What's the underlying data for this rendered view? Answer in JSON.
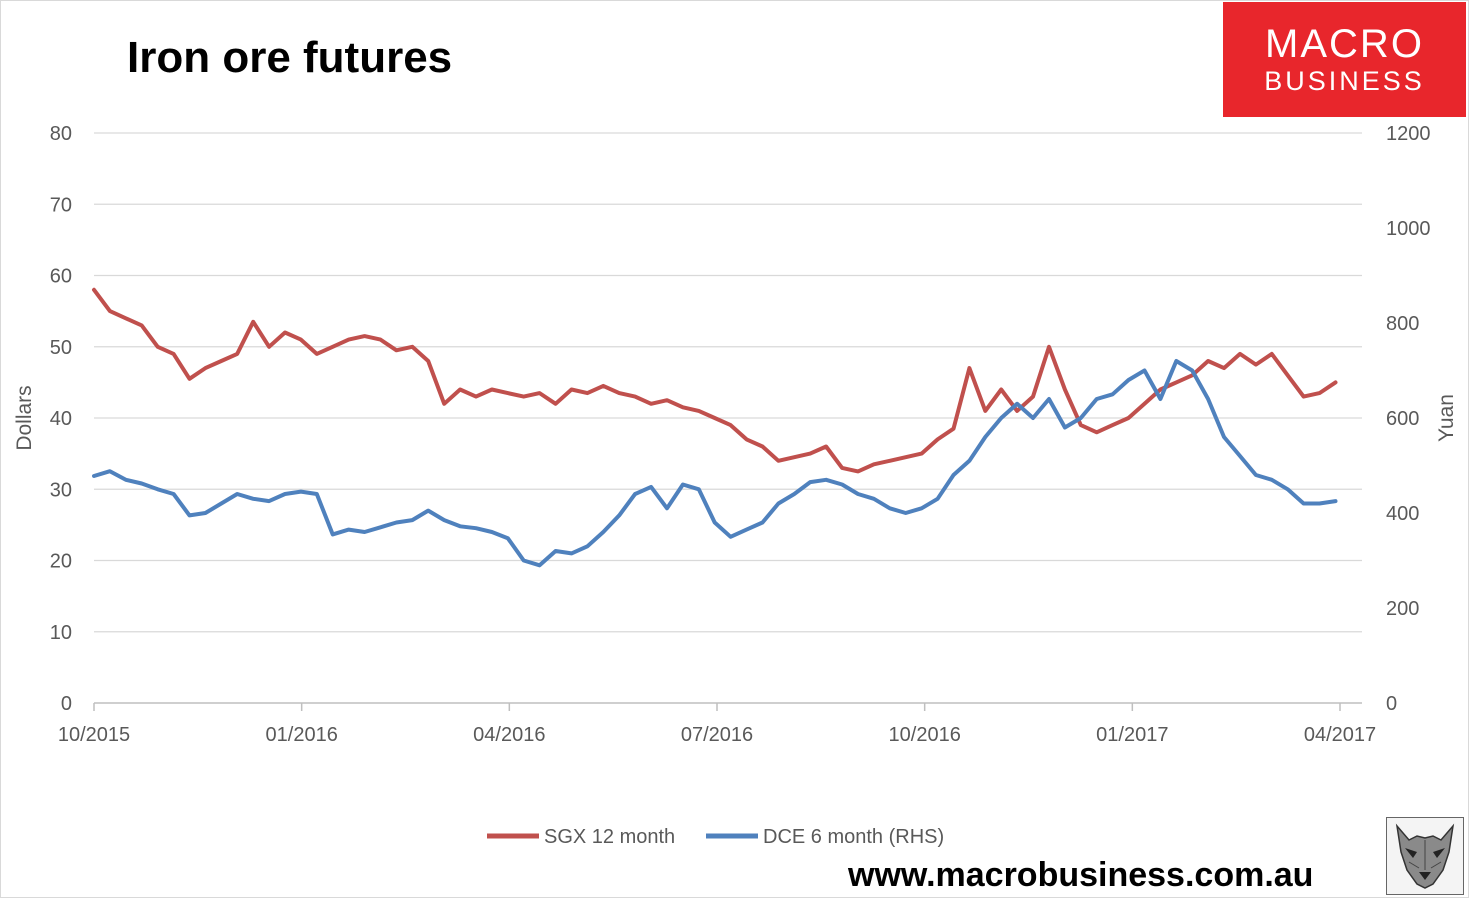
{
  "header": {
    "title": "Iron ore futures"
  },
  "logo": {
    "line1": "MACRO",
    "line2": "BUSINESS",
    "color": "#e8262c"
  },
  "footer": {
    "url": "www.macrobusiness.com.au"
  },
  "wolf_icon": "wolf-head-icon",
  "chart_data": {
    "type": "line",
    "title": "Iron ore futures",
    "ylabel": "Dollars",
    "y2label": "Yuan",
    "ylim": [
      0,
      80
    ],
    "y2lim": [
      0,
      1200
    ],
    "yticks": [
      0,
      10,
      20,
      30,
      40,
      50,
      60,
      70,
      80
    ],
    "y2ticks": [
      0,
      200,
      400,
      600,
      800,
      1000,
      1200
    ],
    "xticks": [
      "10/2015",
      "01/2016",
      "04/2016",
      "07/2016",
      "10/2016",
      "01/2017",
      "04/2017"
    ],
    "x_range": [
      "2015-10-01",
      "2017-04-01"
    ],
    "grid": true,
    "legend_position": "bottom",
    "series": [
      {
        "name": "SGX 12 month",
        "axis": "left",
        "color": "#c0504d",
        "points": [
          [
            "2015-10-01",
            58
          ],
          [
            "2015-10-08",
            55
          ],
          [
            "2015-10-15",
            54
          ],
          [
            "2015-10-22",
            53
          ],
          [
            "2015-10-29",
            50
          ],
          [
            "2015-11-05",
            49
          ],
          [
            "2015-11-12",
            45.5
          ],
          [
            "2015-11-19",
            47
          ],
          [
            "2015-11-26",
            48
          ],
          [
            "2015-12-03",
            49
          ],
          [
            "2015-12-10",
            53.5
          ],
          [
            "2015-12-17",
            50
          ],
          [
            "2015-12-24",
            52
          ],
          [
            "2015-12-31",
            51
          ],
          [
            "2016-01-07",
            49
          ],
          [
            "2016-01-14",
            50
          ],
          [
            "2016-01-21",
            51
          ],
          [
            "2016-01-28",
            51.5
          ],
          [
            "2016-02-04",
            51
          ],
          [
            "2016-02-11",
            49.5
          ],
          [
            "2016-02-18",
            50
          ],
          [
            "2016-02-25",
            48
          ],
          [
            "2016-03-03",
            42
          ],
          [
            "2016-03-10",
            44
          ],
          [
            "2016-03-17",
            43
          ],
          [
            "2016-03-24",
            44
          ],
          [
            "2016-03-31",
            43.5
          ],
          [
            "2016-04-07",
            43
          ],
          [
            "2016-04-14",
            43.5
          ],
          [
            "2016-04-21",
            42
          ],
          [
            "2016-04-28",
            44
          ],
          [
            "2016-05-05",
            43.5
          ],
          [
            "2016-05-12",
            44.5
          ],
          [
            "2016-05-19",
            43.5
          ],
          [
            "2016-05-26",
            43
          ],
          [
            "2016-06-02",
            42
          ],
          [
            "2016-06-09",
            42.5
          ],
          [
            "2016-06-16",
            41.5
          ],
          [
            "2016-06-23",
            41
          ],
          [
            "2016-06-30",
            40
          ],
          [
            "2016-07-07",
            39
          ],
          [
            "2016-07-14",
            37
          ],
          [
            "2016-07-21",
            36
          ],
          [
            "2016-07-28",
            34
          ],
          [
            "2016-08-04",
            34.5
          ],
          [
            "2016-08-11",
            35
          ],
          [
            "2016-08-18",
            36
          ],
          [
            "2016-08-25",
            33
          ],
          [
            "2016-09-01",
            32.5
          ],
          [
            "2016-09-08",
            33.5
          ],
          [
            "2016-09-15",
            34
          ],
          [
            "2016-09-22",
            34.5
          ],
          [
            "2016-09-29",
            35
          ],
          [
            "2016-10-06",
            37
          ],
          [
            "2016-10-13",
            38.5
          ],
          [
            "2016-10-20",
            47
          ],
          [
            "2016-10-27",
            41
          ],
          [
            "2016-11-03",
            44
          ],
          [
            "2016-11-10",
            41
          ],
          [
            "2016-11-17",
            43
          ],
          [
            "2016-11-24",
            50
          ],
          [
            "2016-12-01",
            44
          ],
          [
            "2016-12-08",
            39
          ],
          [
            "2016-12-15",
            38
          ],
          [
            "2016-12-22",
            39
          ],
          [
            "2016-12-29",
            40
          ],
          [
            "2017-01-05",
            42
          ],
          [
            "2017-01-12",
            44
          ],
          [
            "2017-01-19",
            45
          ],
          [
            "2017-01-26",
            46
          ],
          [
            "2017-02-02",
            48
          ],
          [
            "2017-02-09",
            47
          ],
          [
            "2017-02-16",
            49
          ],
          [
            "2017-02-23",
            47.5
          ],
          [
            "2017-03-02",
            49
          ],
          [
            "2017-03-09",
            46
          ],
          [
            "2017-03-16",
            43
          ],
          [
            "2017-03-23",
            43.5
          ],
          [
            "2017-03-30",
            45
          ]
        ]
      },
      {
        "name": "DCE 6 month (RHS)",
        "axis": "right",
        "color": "#4f81bd",
        "points": [
          [
            "2015-10-01",
            478
          ],
          [
            "2015-10-08",
            488
          ],
          [
            "2015-10-15",
            470
          ],
          [
            "2015-10-22",
            462
          ],
          [
            "2015-10-29",
            450
          ],
          [
            "2015-11-05",
            440
          ],
          [
            "2015-11-12",
            395
          ],
          [
            "2015-11-19",
            400
          ],
          [
            "2015-11-26",
            420
          ],
          [
            "2015-12-03",
            440
          ],
          [
            "2015-12-10",
            430
          ],
          [
            "2015-12-17",
            425
          ],
          [
            "2015-12-24",
            440
          ],
          [
            "2015-12-31",
            445
          ],
          [
            "2016-01-07",
            440
          ],
          [
            "2016-01-14",
            355
          ],
          [
            "2016-01-21",
            365
          ],
          [
            "2016-01-28",
            360
          ],
          [
            "2016-02-04",
            370
          ],
          [
            "2016-02-11",
            380
          ],
          [
            "2016-02-18",
            385
          ],
          [
            "2016-02-25",
            405
          ],
          [
            "2016-03-03",
            385
          ],
          [
            "2016-03-10",
            372
          ],
          [
            "2016-03-17",
            368
          ],
          [
            "2016-03-24",
            360
          ],
          [
            "2016-03-31",
            347
          ],
          [
            "2016-04-07",
            300
          ],
          [
            "2016-04-14",
            290
          ],
          [
            "2016-04-21",
            320
          ],
          [
            "2016-04-28",
            315
          ],
          [
            "2016-05-05",
            330
          ],
          [
            "2016-05-12",
            360
          ],
          [
            "2016-05-19",
            395
          ],
          [
            "2016-05-26",
            440
          ],
          [
            "2016-06-02",
            455
          ],
          [
            "2016-06-09",
            410
          ],
          [
            "2016-06-16",
            460
          ],
          [
            "2016-06-23",
            450
          ],
          [
            "2016-06-30",
            380
          ],
          [
            "2016-07-07",
            350
          ],
          [
            "2016-07-14",
            365
          ],
          [
            "2016-07-21",
            380
          ],
          [
            "2016-07-28",
            420
          ],
          [
            "2016-08-04",
            440
          ],
          [
            "2016-08-11",
            465
          ],
          [
            "2016-08-18",
            470
          ],
          [
            "2016-08-25",
            460
          ],
          [
            "2016-09-01",
            440
          ],
          [
            "2016-09-08",
            430
          ],
          [
            "2016-09-15",
            410
          ],
          [
            "2016-09-22",
            400
          ],
          [
            "2016-09-29",
            410
          ],
          [
            "2016-10-06",
            430
          ],
          [
            "2016-10-13",
            480
          ],
          [
            "2016-10-20",
            510
          ],
          [
            "2016-10-27",
            560
          ],
          [
            "2016-11-03",
            600
          ],
          [
            "2016-11-10",
            630
          ],
          [
            "2016-11-17",
            600
          ],
          [
            "2016-11-24",
            640
          ],
          [
            "2016-12-01",
            580
          ],
          [
            "2016-12-08",
            600
          ],
          [
            "2016-12-15",
            640
          ],
          [
            "2016-12-22",
            650
          ],
          [
            "2016-12-29",
            680
          ],
          [
            "2017-01-05",
            700
          ],
          [
            "2017-01-12",
            640
          ],
          [
            "2017-01-19",
            720
          ],
          [
            "2017-01-26",
            700
          ],
          [
            "2017-02-02",
            640
          ],
          [
            "2017-02-09",
            560
          ],
          [
            "2017-02-16",
            520
          ],
          [
            "2017-02-23",
            480
          ],
          [
            "2017-03-02",
            470
          ],
          [
            "2017-03-09",
            450
          ],
          [
            "2017-03-16",
            420
          ],
          [
            "2017-03-23",
            420
          ],
          [
            "2017-03-30",
            425
          ]
        ]
      }
    ]
  }
}
